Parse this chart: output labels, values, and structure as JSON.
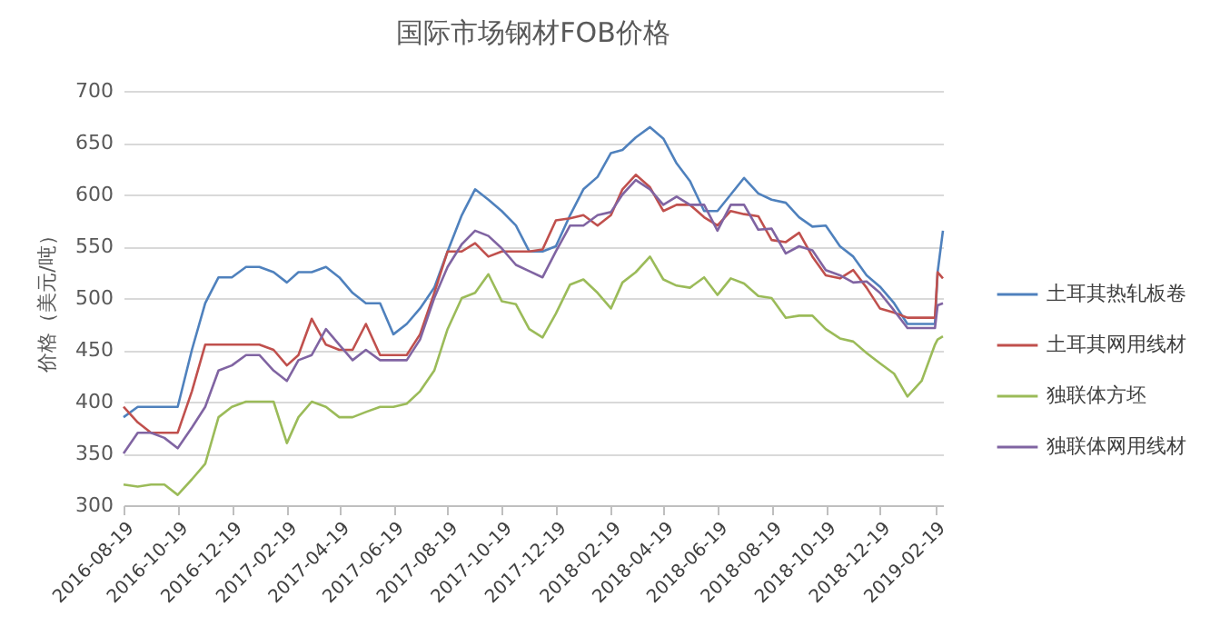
{
  "chart_data": {
    "type": "line",
    "title": "国际市场钢材FOB价格",
    "ylabel": "价格（美元/吨）",
    "x": [
      "2016-08-19",
      "2016-09-04",
      "2016-09-19",
      "2016-10-04",
      "2016-10-19",
      "2016-11-04",
      "2016-11-19",
      "2016-12-04",
      "2016-12-19",
      "2017-01-04",
      "2017-01-19",
      "2017-02-04",
      "2017-02-19",
      "2017-03-04",
      "2017-03-19",
      "2017-04-04",
      "2017-04-19",
      "2017-05-04",
      "2017-05-19",
      "2017-06-04",
      "2017-06-19",
      "2017-07-04",
      "2017-07-19",
      "2017-08-04",
      "2017-08-19",
      "2017-09-04",
      "2017-09-19",
      "2017-10-04",
      "2017-10-19",
      "2017-11-04",
      "2017-11-19",
      "2017-12-04",
      "2017-12-19",
      "2018-01-04",
      "2018-01-19",
      "2018-02-04",
      "2018-02-19",
      "2018-03-04",
      "2018-03-19",
      "2018-04-04",
      "2018-04-19",
      "2018-05-04",
      "2018-05-19",
      "2018-06-04",
      "2018-06-19",
      "2018-07-04",
      "2018-07-19",
      "2018-08-04",
      "2018-08-19",
      "2018-09-04",
      "2018-09-19",
      "2018-10-04",
      "2018-10-19",
      "2018-11-04",
      "2018-11-19",
      "2018-12-04",
      "2018-12-19",
      "2019-01-04",
      "2019-01-19",
      "2019-02-04",
      "2019-02-19",
      "2019-02-22",
      "2019-02-28"
    ],
    "series": [
      {
        "name": "土耳其热轧板卷",
        "color": "#4f81bd",
        "values": [
          385,
          395,
          395,
          395,
          395,
          450,
          495,
          520,
          520,
          530,
          530,
          525,
          515,
          525,
          525,
          530,
          520,
          505,
          495,
          495,
          465,
          475,
          490,
          510,
          545,
          580,
          605,
          595,
          584,
          570,
          545,
          545,
          550,
          580,
          605,
          617,
          640,
          643,
          655,
          665,
          654,
          630,
          613,
          584,
          584,
          600,
          616,
          601,
          595,
          592,
          578,
          569,
          570,
          550,
          540,
          522,
          511,
          495,
          475,
          475,
          475,
          525,
          565
        ]
      },
      {
        "name": "土耳其网用线材",
        "color": "#c0504d",
        "values": [
          395,
          380,
          370,
          370,
          370,
          410,
          455,
          455,
          455,
          455,
          455,
          450,
          435,
          445,
          480,
          455,
          450,
          450,
          475,
          445,
          445,
          445,
          465,
          505,
          545,
          545,
          553,
          540,
          545,
          545,
          545,
          547,
          575,
          577,
          580,
          570,
          580,
          605,
          619,
          607,
          584,
          590,
          590,
          578,
          570,
          584,
          581,
          579,
          556,
          554,
          563,
          540,
          522,
          519,
          527,
          510,
          490,
          486,
          481,
          481,
          481,
          525,
          519
        ]
      },
      {
        "name": "独联体方坯",
        "color": "#9bbb59",
        "values": [
          320,
          318,
          320,
          320,
          310,
          325,
          340,
          385,
          395,
          400,
          400,
          400,
          360,
          385,
          400,
          395,
          385,
          385,
          390,
          395,
          395,
          398,
          410,
          430,
          470,
          500,
          505,
          523,
          497,
          494,
          470,
          462,
          485,
          513,
          518,
          505,
          490,
          515,
          525,
          540,
          518,
          512,
          510,
          520,
          503,
          519,
          514,
          502,
          500,
          481,
          483,
          483,
          470,
          461,
          458,
          447,
          437,
          427,
          405,
          420,
          455,
          460,
          463
        ]
      },
      {
        "name": "独联体网用线材",
        "color": "#8064a2",
        "values": [
          350,
          370,
          370,
          365,
          355,
          375,
          395,
          430,
          435,
          445,
          445,
          430,
          420,
          440,
          445,
          470,
          455,
          440,
          450,
          440,
          440,
          440,
          460,
          500,
          530,
          552,
          565,
          560,
          548,
          532,
          526,
          520,
          545,
          570,
          570,
          580,
          583,
          600,
          614,
          605,
          590,
          598,
          590,
          590,
          565,
          590,
          590,
          566,
          567,
          543,
          550,
          546,
          527,
          522,
          515,
          516,
          505,
          488,
          471,
          471,
          471,
          493,
          495
        ]
      }
    ],
    "xlim": [
      "2016-08-19",
      "2019-02-28"
    ],
    "xticks": [
      "2016-08-19",
      "2016-10-19",
      "2016-12-19",
      "2017-02-19",
      "2017-04-19",
      "2017-06-19",
      "2017-08-19",
      "2017-10-19",
      "2017-12-19",
      "2018-02-19",
      "2018-04-19",
      "2018-06-19",
      "2018-08-19",
      "2018-10-19",
      "2018-12-19",
      "2019-02-19"
    ],
    "ylim": [
      300,
      700
    ],
    "yticks": [
      300,
      350,
      400,
      450,
      500,
      550,
      600,
      650,
      700
    ],
    "grid": "y",
    "legend": "right"
  }
}
